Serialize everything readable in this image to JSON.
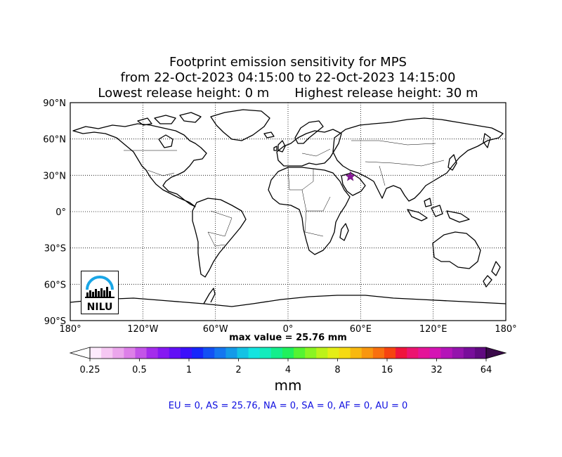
{
  "title": {
    "line1": "Footprint emission sensitivity for MPS",
    "line2": "from 22-Oct-2023 04:15:00 to 22-Oct-2023 14:15:00",
    "lowest": "Lowest release height: 0 m",
    "highest": "Highest release height: 30 m"
  },
  "map": {
    "lat_ticks": [
      "90°N",
      "60°N",
      "30°N",
      "0°",
      "30°S",
      "60°S",
      "90°S"
    ],
    "lon_ticks": [
      "180°",
      "120°W",
      "60°W",
      "0°",
      "60°E",
      "120°E",
      "180°"
    ],
    "lon_range": [
      -180,
      180
    ],
    "lat_range": [
      -90,
      90
    ],
    "grid": "dotted",
    "release_site": {
      "lon": 51.5,
      "lat": 29.0,
      "marker": "star",
      "color": "#8b1a9b"
    }
  },
  "logo": {
    "text": "NILU",
    "icon": "nilu-logo-icon"
  },
  "max_value": "max value = 25.76 mm",
  "colorbar": {
    "ticks": [
      "0.25",
      "0.5",
      "1",
      "2",
      "4",
      "8",
      "16",
      "32",
      "64"
    ],
    "unit": "mm",
    "colors": [
      "#fdeafc",
      "#f6c8f3",
      "#eba6ec",
      "#dd80e8",
      "#c354e8",
      "#a42cec",
      "#8618f2",
      "#6210f6",
      "#3c10fa",
      "#1626fa",
      "#1250f4",
      "#1476f0",
      "#149ae8",
      "#14c2e4",
      "#14e4e0",
      "#14ecbc",
      "#14ee8c",
      "#20f05c",
      "#54f432",
      "#8af422",
      "#bcf21a",
      "#e4ee16",
      "#f6da12",
      "#f8b810",
      "#f8960e",
      "#f8700e",
      "#f64410",
      "#f0143c",
      "#ec1470",
      "#e41498",
      "#d414b4",
      "#b414b8",
      "#9414ac",
      "#780e9a",
      "#600a80"
    ]
  },
  "stats": "EU = 0,  AS = 25.76,  NA = 0,  SA = 0,  AF = 0,  AU = 0"
}
